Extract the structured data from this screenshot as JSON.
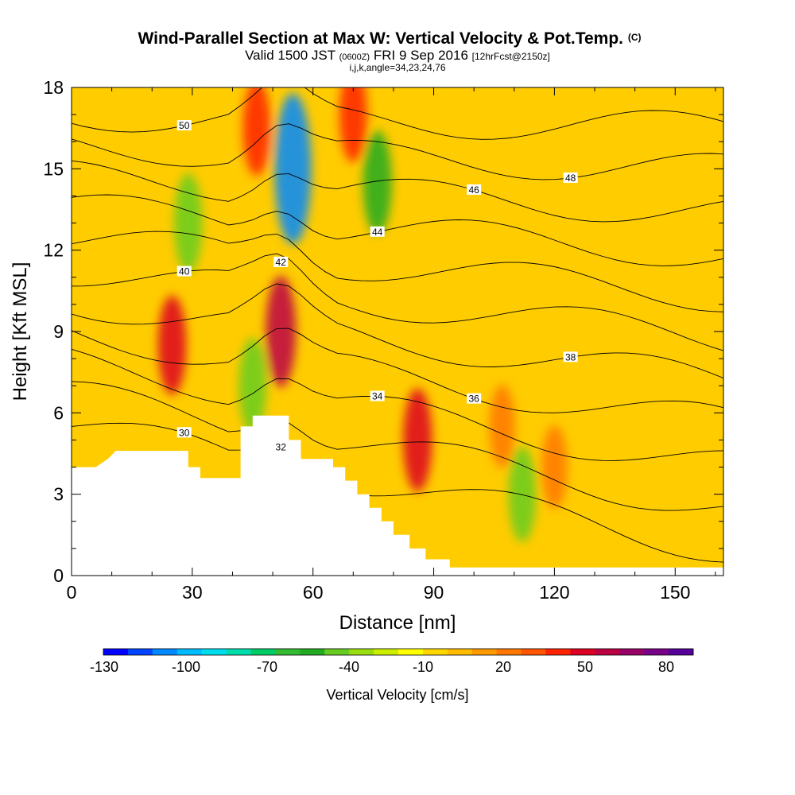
{
  "chart_data": {
    "type": "heatmap",
    "title": "Wind-Parallel Section at Max W: Vertical Velocity & Pot.Temp.",
    "title_mark": "(C)",
    "subtitle_parts": {
      "valid": "Valid 1500 JST",
      "utc": "(0600Z)",
      "date": "FRI 9 Sep 2016",
      "fcst": "[12hrFcst@2150z]"
    },
    "subtitle2": "i,j,k,angle=34,23,24,76",
    "xlabel": "Distance [nm]",
    "ylabel": "Height [Kft MSL]",
    "xlim": [
      0,
      162
    ],
    "ylim": [
      0,
      18
    ],
    "x_ticks": [
      "0",
      "30",
      "60",
      "90",
      "120",
      "150"
    ],
    "y_ticks": [
      "0",
      "3",
      "6",
      "9",
      "12",
      "15",
      "18"
    ],
    "colorbar": {
      "label": "Vertical Velocity [cm/s]",
      "tick_labels": [
        "-130",
        "-100",
        "-70",
        "-40",
        "-10",
        "20",
        "50",
        "80"
      ],
      "colors": [
        "#0000ff",
        "#0044ff",
        "#0088ff",
        "#00bbff",
        "#00ddee",
        "#00ddaa",
        "#00cc66",
        "#33bb33",
        "#22aa22",
        "#66cc22",
        "#99dd11",
        "#ccee00",
        "#ffff00",
        "#ffd700",
        "#ffbb00",
        "#ff9900",
        "#ff7700",
        "#ff5500",
        "#ff2200",
        "#dd0022",
        "#bb0044",
        "#990066",
        "#770088",
        "#550099"
      ]
    },
    "field": {
      "name": "vertical velocity",
      "units": "cm/s",
      "features": [
        {
          "x": 25,
          "y": 8.5,
          "value": 45,
          "note": "updraft"
        },
        {
          "x": 52,
          "y": 9.0,
          "value": 60,
          "note": "updraft"
        },
        {
          "x": 46,
          "y": 16.5,
          "value": 40,
          "note": "updraft aloft"
        },
        {
          "x": 70,
          "y": 17.0,
          "value": 40,
          "note": "updraft aloft"
        },
        {
          "x": 86,
          "y": 5.0,
          "value": 50,
          "note": "updraft"
        },
        {
          "x": 107,
          "y": 5.5,
          "value": 25,
          "note": "updraft"
        },
        {
          "x": 120,
          "y": 4.0,
          "value": 25,
          "note": "updraft"
        },
        {
          "x": 55,
          "y": 15.0,
          "value": -110,
          "note": "downdraft"
        },
        {
          "x": 76,
          "y": 14.5,
          "value": -50,
          "note": "downdraft"
        },
        {
          "x": 29,
          "y": 13.0,
          "value": -45,
          "note": "downdraft"
        },
        {
          "x": 112,
          "y": 3.0,
          "value": -40,
          "note": "downdraft"
        },
        {
          "x": 45,
          "y": 7.0,
          "value": -40,
          "note": "downdraft"
        }
      ]
    },
    "terrain": [
      [
        0,
        4.0
      ],
      [
        6,
        4.0
      ],
      [
        6,
        4.0
      ],
      [
        9,
        4.3
      ],
      [
        11,
        4.6
      ],
      [
        29,
        4.6
      ],
      [
        29,
        4.0
      ],
      [
        32,
        4.0
      ],
      [
        32,
        3.6
      ],
      [
        42,
        3.6
      ],
      [
        42,
        5.5
      ],
      [
        45,
        5.5
      ],
      [
        45,
        5.9
      ],
      [
        50,
        5.9
      ],
      [
        50,
        5.9
      ],
      [
        54,
        5.9
      ],
      [
        54,
        5.0
      ],
      [
        57,
        5.0
      ],
      [
        57,
        4.3
      ],
      [
        65,
        4.3
      ],
      [
        65,
        4.0
      ],
      [
        68,
        4.0
      ],
      [
        68,
        3.5
      ],
      [
        71,
        3.5
      ],
      [
        71,
        3.0
      ],
      [
        74,
        3.0
      ],
      [
        74,
        2.5
      ],
      [
        77,
        2.5
      ],
      [
        77,
        2.0
      ],
      [
        80,
        2.0
      ],
      [
        80,
        1.5
      ],
      [
        84,
        1.5
      ],
      [
        84,
        1.0
      ],
      [
        88,
        1.0
      ],
      [
        88,
        0.6
      ],
      [
        94,
        0.6
      ],
      [
        94,
        0.3
      ],
      [
        162,
        0.3
      ]
    ],
    "theta_contours": [
      {
        "theta": 30,
        "label": "30"
      },
      {
        "theta": 32,
        "label": "32"
      },
      {
        "theta": 34,
        "label": "34"
      },
      {
        "theta": 36,
        "label": "36"
      },
      {
        "theta": 38,
        "label": "38"
      },
      {
        "theta": 40,
        "label": "40"
      },
      {
        "theta": 42,
        "label": "42"
      },
      {
        "theta": 44,
        "label": "44"
      },
      {
        "theta": 46,
        "label": "46"
      },
      {
        "theta": 48,
        "label": "48"
      },
      {
        "theta": 50,
        "label": "50"
      }
    ]
  }
}
